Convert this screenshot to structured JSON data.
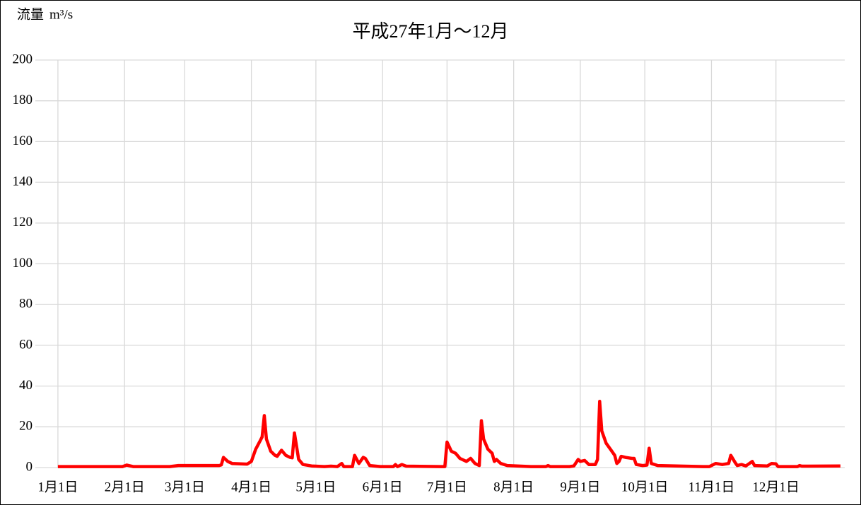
{
  "chart_data": {
    "type": "line",
    "title": "平成27年1月～12月",
    "y_label": "流量",
    "y_unit": "m³/s",
    "x": [
      0,
      30,
      32,
      35,
      52,
      56,
      75,
      76,
      77,
      79,
      81,
      88,
      90,
      92,
      94,
      95,
      96,
      97,
      99,
      101,
      102,
      104,
      106,
      108,
      109,
      110,
      112,
      114,
      118,
      124,
      127,
      130,
      132,
      133,
      137,
      138,
      140,
      142,
      143,
      145,
      150,
      156,
      157,
      158,
      160,
      162,
      178,
      180,
      181,
      183,
      185,
      187,
      190,
      192,
      194,
      196,
      197,
      198,
      200,
      202,
      203,
      204,
      206,
      209,
      220,
      227,
      228,
      229,
      238,
      240,
      242,
      243,
      245,
      247,
      250,
      251,
      252,
      253,
      255,
      257,
      259,
      260,
      261,
      262,
      264,
      267,
      268,
      269,
      272,
      274,
      275,
      276,
      279,
      300,
      303,
      306,
      309,
      312,
      313,
      315,
      316,
      318,
      320,
      323,
      324,
      330,
      332,
      334,
      335,
      344,
      345,
      346,
      364
    ],
    "series": [
      {
        "name": "流量",
        "color": "#ff0000",
        "values": [
          0.5,
          0.5,
          1.2,
          0.5,
          0.5,
          1,
          1,
          1.3,
          5,
          3,
          2,
          1.7,
          3,
          9,
          13,
          15,
          25.5,
          14,
          8,
          6,
          5.5,
          8.5,
          6,
          5,
          4.8,
          17,
          4,
          1.5,
          0.8,
          0.5,
          0.7,
          0.5,
          2,
          0.5,
          0.5,
          6,
          2,
          5,
          4.5,
          1,
          0.5,
          0.5,
          1.5,
          0.5,
          1.5,
          0.7,
          0.5,
          0.5,
          12.5,
          8,
          7,
          4.5,
          3,
          4.5,
          2,
          1,
          23,
          14,
          9,
          7,
          3,
          4,
          2,
          1,
          0.5,
          0.5,
          1,
          0.5,
          0.5,
          0.8,
          4,
          3,
          3.5,
          1.5,
          1.5,
          4,
          32.5,
          18,
          12,
          9,
          6,
          2,
          3,
          5.5,
          5,
          4.5,
          4.5,
          1.5,
          1,
          1.2,
          9.5,
          2,
          1,
          0.5,
          0.5,
          2,
          1.5,
          2,
          6,
          2.5,
          1,
          1.5,
          0.8,
          3,
          1,
          0.8,
          2,
          1.8,
          0.5,
          0.5,
          1,
          0.7,
          0.8
        ]
      }
    ],
    "xlim": [
      -10.5,
      366
    ],
    "xticks": [
      {
        "value": 0,
        "label": "1月1日"
      },
      {
        "value": 31,
        "label": "2月1日"
      },
      {
        "value": 59,
        "label": "3月1日"
      },
      {
        "value": 90,
        "label": "4月1日"
      },
      {
        "value": 120,
        "label": "5月1日"
      },
      {
        "value": 151,
        "label": "6月1日"
      },
      {
        "value": 181,
        "label": "7月1日"
      },
      {
        "value": 212,
        "label": "8月1日"
      },
      {
        "value": 243,
        "label": "9月1日"
      },
      {
        "value": 273,
        "label": "10月1日"
      },
      {
        "value": 304,
        "label": "11月1日"
      },
      {
        "value": 334,
        "label": "12月1日"
      }
    ],
    "ylim": [
      0,
      200
    ],
    "yticks": [
      0,
      20,
      40,
      60,
      80,
      100,
      120,
      140,
      160,
      180,
      200
    ],
    "grid": true
  }
}
